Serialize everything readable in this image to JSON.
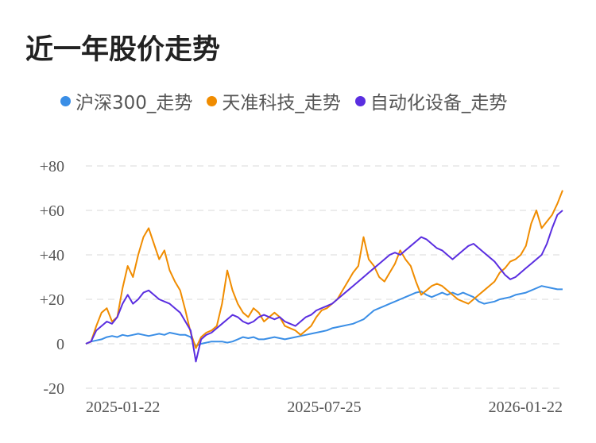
{
  "title": "近一年股价走势",
  "colors": {
    "hs300": "#3a8ee6",
    "tianzhun": "#f08c00",
    "automation": "#5a2ee0",
    "grid": "#e6e6e6",
    "text": "#555555"
  },
  "chart_data": {
    "type": "line",
    "title": "近一年股价走势",
    "xlabel": "",
    "ylabel": "",
    "ylim": [
      -20,
      80
    ],
    "yticks": [
      "+80",
      "+60",
      "+40",
      "+20",
      "0",
      "-20"
    ],
    "ytick_values": [
      80,
      60,
      40,
      20,
      0,
      -20
    ],
    "xticks": [
      "2025-01-22",
      "2025-07-25",
      "2026-01-22"
    ],
    "xtick_positions": [
      0,
      0.5,
      1
    ],
    "grid": true,
    "legend_placement": "top",
    "series": [
      {
        "name": "沪深300_走势",
        "color_key": "hs300",
        "values": [
          0,
          1,
          1.5,
          2,
          3,
          3.5,
          3,
          4,
          3.5,
          4,
          4.5,
          4,
          3.5,
          4,
          4.5,
          4,
          5,
          4.5,
          4,
          4,
          3,
          -1,
          0,
          0.5,
          1,
          1,
          1,
          0.5,
          1,
          2,
          3,
          2.5,
          3,
          2,
          2,
          2.5,
          3,
          2.5,
          2,
          2.5,
          3,
          3.5,
          4,
          4.5,
          5,
          5.5,
          6,
          7,
          7.5,
          8,
          8.5,
          9,
          10,
          11,
          13,
          15,
          16,
          17,
          18,
          19,
          20,
          21,
          22,
          23,
          23.5,
          22,
          21,
          22,
          23,
          22,
          23,
          22,
          23,
          22,
          21,
          19,
          18,
          18.5,
          19,
          20,
          20.5,
          21,
          22,
          22.5,
          23,
          24,
          25,
          26,
          25.5,
          25,
          24.5,
          24.5
        ]
      },
      {
        "name": "天准科技_走势",
        "color_key": "tianzhun",
        "values": [
          0,
          1,
          8,
          14,
          16,
          10,
          12,
          25,
          35,
          30,
          40,
          48,
          52,
          45,
          38,
          42,
          33,
          28,
          24,
          15,
          5,
          -2,
          3,
          5,
          6,
          8,
          18,
          33,
          24,
          18,
          14,
          12,
          16,
          14,
          10,
          12,
          14,
          12,
          8,
          7,
          6,
          4,
          6,
          8,
          12,
          15,
          16,
          18,
          20,
          24,
          28,
          32,
          35,
          48,
          38,
          35,
          30,
          28,
          32,
          36,
          42,
          38,
          35,
          28,
          22,
          24,
          26,
          27,
          26,
          24,
          22,
          20,
          19,
          18,
          20,
          22,
          24,
          26,
          28,
          32,
          34,
          37,
          38,
          40,
          44,
          54,
          60,
          52,
          55,
          58,
          63,
          69
        ]
      },
      {
        "name": "自动化设备_走势",
        "color_key": "automation",
        "values": [
          0,
          1,
          6,
          8,
          10,
          9,
          12,
          18,
          22,
          18,
          20,
          23,
          24,
          22,
          20,
          19,
          18,
          16,
          14,
          10,
          6,
          -8,
          2,
          4,
          5,
          7,
          9,
          11,
          13,
          12,
          10,
          9,
          10,
          12,
          13,
          12,
          11,
          12,
          10,
          9,
          8,
          10,
          12,
          13,
          15,
          16,
          17,
          18,
          20,
          22,
          24,
          26,
          28,
          30,
          32,
          34,
          36,
          38,
          40,
          41,
          40,
          42,
          44,
          46,
          48,
          47,
          45,
          43,
          42,
          40,
          38,
          40,
          42,
          44,
          45,
          43,
          41,
          39,
          37,
          34,
          31,
          29,
          30,
          32,
          34,
          36,
          38,
          40,
          45,
          52,
          58,
          60
        ]
      }
    ]
  }
}
